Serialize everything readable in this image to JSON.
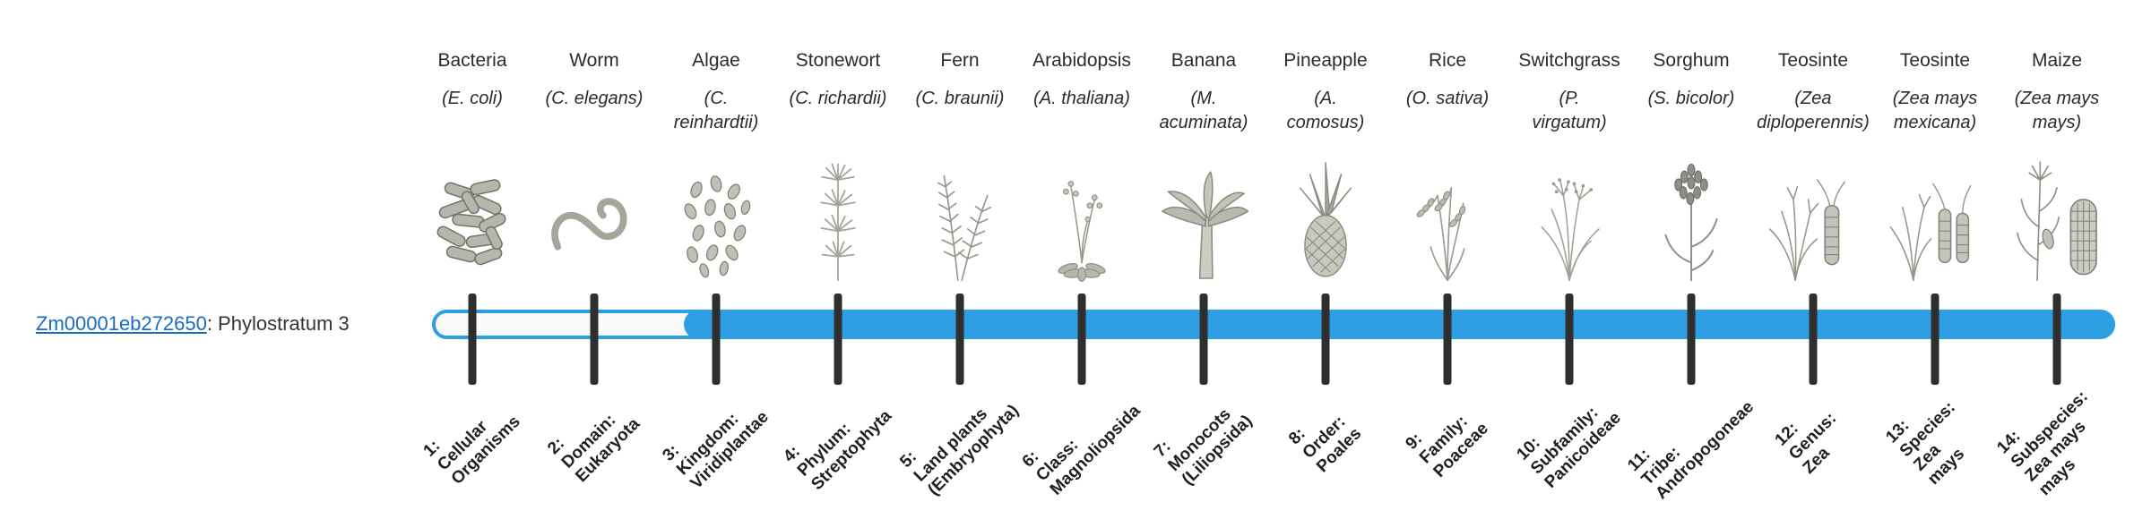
{
  "gene": {
    "id": "Zm00001eb272650",
    "label_suffix": ": Phylostratum 3",
    "phylostratum": 3
  },
  "colors": {
    "bar_blue": "#2f9fe3",
    "bar_hollow_fill": "#fafafa",
    "tick_dark": "#2e2e2e",
    "link_blue": "#1a6bc4",
    "text_dark": "#2b2b2b"
  },
  "columns": [
    {
      "name": "Bacteria",
      "sci_lines": [
        "(E. coli)"
      ],
      "icon": "bacteria-icon",
      "label_lines": [
        "1:",
        "Cellular",
        "Organisms"
      ]
    },
    {
      "name": "Worm",
      "sci_lines": [
        "(C. elegans)"
      ],
      "icon": "worm-icon",
      "label_lines": [
        "2:",
        "Domain:",
        "Eukaryota"
      ]
    },
    {
      "name": "Algae",
      "sci_lines": [
        "(C.",
        "reinhardtii)"
      ],
      "icon": "algae-icon",
      "label_lines": [
        "3:",
        "Kingdom:",
        "Viridiplantae"
      ]
    },
    {
      "name": "Stonewort",
      "sci_lines": [
        "(C. richardii)"
      ],
      "icon": "stonewort-icon",
      "label_lines": [
        "4:",
        "Phylum:",
        "Streptophyta"
      ]
    },
    {
      "name": "Fern",
      "sci_lines": [
        "(C. braunii)"
      ],
      "icon": "fern-icon",
      "label_lines": [
        "5:",
        "Land plants",
        "(Embryophyta)"
      ]
    },
    {
      "name": "Arabidopsis",
      "sci_lines": [
        "(A. thaliana)"
      ],
      "icon": "arabidopsis-icon",
      "label_lines": [
        "6:",
        "Class:",
        "Magnoliopsida"
      ]
    },
    {
      "name": "Banana",
      "sci_lines": [
        "(M.",
        "acuminata)"
      ],
      "icon": "banana-icon",
      "label_lines": [
        "7:",
        "Monocots",
        "(Liliopsida)"
      ]
    },
    {
      "name": "Pineapple",
      "sci_lines": [
        "(A.",
        "comosus)"
      ],
      "icon": "pineapple-icon",
      "label_lines": [
        "8:",
        "Order:",
        "Poales"
      ]
    },
    {
      "name": "Rice",
      "sci_lines": [
        "(O. sativa)"
      ],
      "icon": "rice-icon",
      "label_lines": [
        "9:",
        "Family:",
        "Poaceae"
      ]
    },
    {
      "name": "Switchgrass",
      "sci_lines": [
        "(P.",
        "virgatum)"
      ],
      "icon": "switchgrass-icon",
      "label_lines": [
        "10:",
        "Subfamily:",
        "Panicoideae"
      ]
    },
    {
      "name": "Sorghum",
      "sci_lines": [
        "(S. bicolor)"
      ],
      "icon": "sorghum-icon",
      "label_lines": [
        "11:",
        "Tribe:",
        "Andropogoneae"
      ]
    },
    {
      "name": "Teosinte",
      "sci_lines": [
        "(Zea",
        "diploperennis)"
      ],
      "icon": "teosinte-diploperennis-icon",
      "label_lines": [
        "12:",
        "Genus:",
        "Zea"
      ]
    },
    {
      "name": "Teosinte",
      "sci_lines": [
        "(Zea mays",
        "mexicana)"
      ],
      "icon": "teosinte-mexicana-icon",
      "label_lines": [
        "13:",
        "Species:",
        "Zea",
        "mays"
      ]
    },
    {
      "name": "Maize",
      "sci_lines": [
        "(Zea mays",
        "mays)"
      ],
      "icon": "maize-icon",
      "label_lines": [
        "14:",
        "Subspecies:",
        "Zea mays",
        "mays"
      ]
    }
  ]
}
